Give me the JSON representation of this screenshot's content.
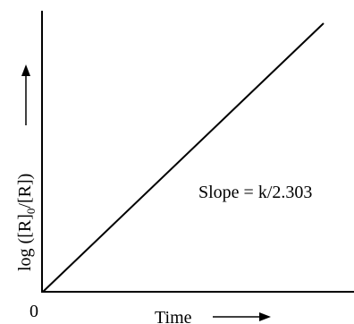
{
  "chart_data": {
    "type": "line",
    "xlabel": "Time",
    "ylabel_parts": {
      "before": "log ([R]",
      "subscript": "0",
      "after": "/[R])"
    },
    "origin_label": "0",
    "annotation": "Slope = k/2.303",
    "series": [
      {
        "x": [
          0,
          1
        ],
        "values": [
          0,
          1
        ]
      }
    ],
    "xlim": [
      0,
      1.14
    ],
    "ylim": [
      0,
      1.14
    ],
    "grid": false
  },
  "colors": {
    "axis": "#000000",
    "line": "#000000",
    "text": "#000000"
  }
}
